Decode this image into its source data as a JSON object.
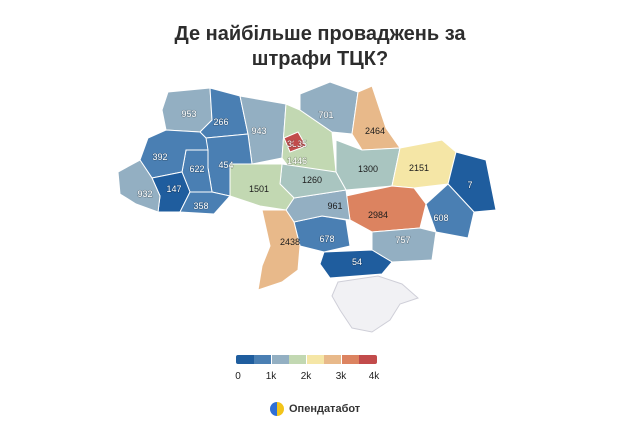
{
  "title": {
    "line1": "Де найбільше проваджень за",
    "line2": "штрафи ТЦК?"
  },
  "colors": {
    "blue_dark": "#1f5d9e",
    "blue_mid": "#4a7fb3",
    "blue_light": "#7a9fc0",
    "gray_blue": "#93afc2",
    "teal_light": "#a9c5c0",
    "green_pale": "#c2d8b2",
    "yellow_pale": "#f5e6a6",
    "peach": "#e8b98a",
    "orange": "#dc8360",
    "red": "#c24b4b",
    "no_data": "#f1f1f4"
  },
  "map_values": [
    {
      "region": "volynska",
      "value": 953
    },
    {
      "region": "rivnenska",
      "value": 266
    },
    {
      "region": "zhytomyrska",
      "value": 943
    },
    {
      "region": "kyivska",
      "value": 1446
    },
    {
      "region": "kyiv-city",
      "value": 3835
    },
    {
      "region": "chernihivska",
      "value": 701
    },
    {
      "region": "sumska",
      "value": 2464
    },
    {
      "region": "kharkivska",
      "value": 2151
    },
    {
      "region": "luhanska",
      "value": 7
    },
    {
      "region": "lvivska",
      "value": 392
    },
    {
      "region": "ternopilska",
      "value": 622
    },
    {
      "region": "khmelnytska",
      "value": 454
    },
    {
      "region": "zakarpatska",
      "value": 932
    },
    {
      "region": "ivano-frankivska",
      "value": 147
    },
    {
      "region": "chernivetska",
      "value": 358
    },
    {
      "region": "vinnytska",
      "value": 1501
    },
    {
      "region": "cherkaska",
      "value": 1260
    },
    {
      "region": "poltavska",
      "value": 1300
    },
    {
      "region": "kirovohradska",
      "value": 961
    },
    {
      "region": "dnipropetrovska",
      "value": 2984
    },
    {
      "region": "donetska",
      "value": 608
    },
    {
      "region": "odeska",
      "value": 2438
    },
    {
      "region": "mykolaivska",
      "value": 678
    },
    {
      "region": "zaporizka",
      "value": 757
    },
    {
      "region": "khersonska",
      "value": 54
    }
  ],
  "legend": {
    "labels": [
      "0",
      "1k",
      "2k",
      "3k",
      "4k"
    ]
  },
  "brand": {
    "name": "Опендатабот"
  }
}
